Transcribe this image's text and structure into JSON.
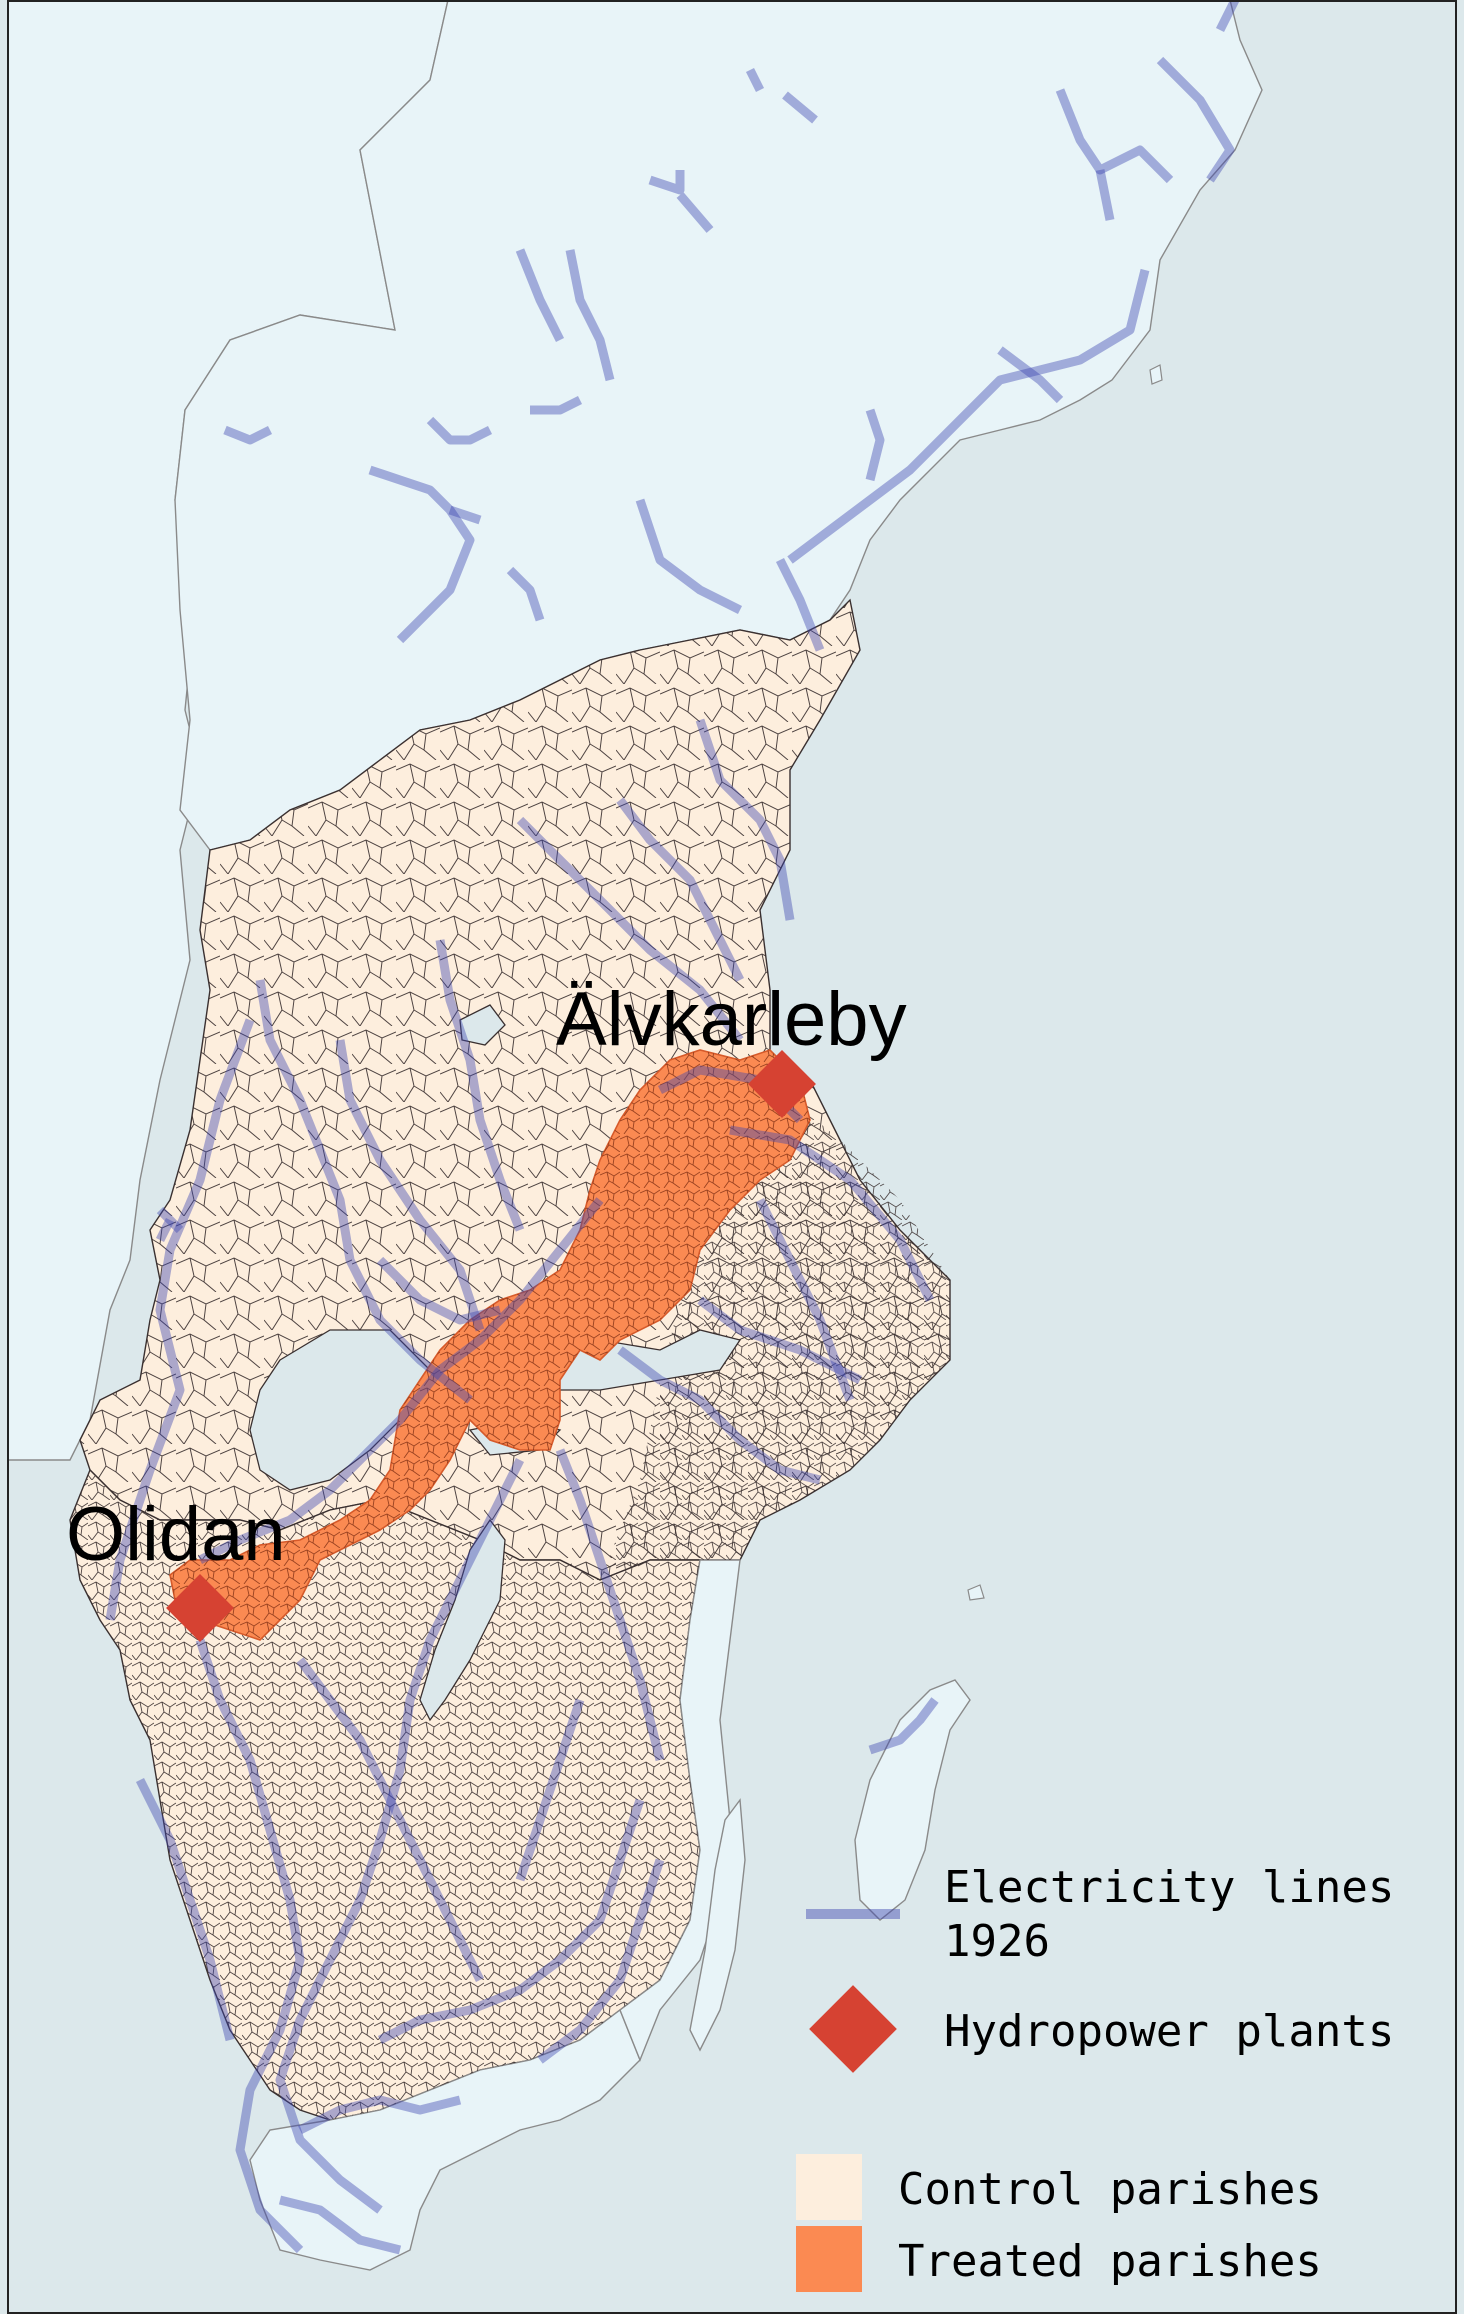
{
  "map": {
    "labels": {
      "alvkarleby": "Älvkarleby",
      "olidan": "Olidan"
    },
    "colors": {
      "sea": "#dce8eb",
      "outside_region": "#e8f4f8",
      "control": "#fdeedd",
      "treated": "#fb8a52",
      "treated_outline": "#d65a2a",
      "electricity": "#3b45b0",
      "hydropower": "#d64232",
      "parish_border": "#3a3030"
    }
  },
  "legend": {
    "electricity_line1": "Electricity lines",
    "electricity_line2": "1926",
    "hydropower": "Hydropower plants",
    "control": "Control parishes",
    "treated": "Treated parishes"
  }
}
